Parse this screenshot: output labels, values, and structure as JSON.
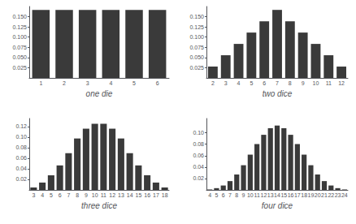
{
  "chart_data": [
    {
      "type": "bar",
      "xlabel": "one die",
      "categories": [
        "1",
        "2",
        "3",
        "4",
        "5",
        "6"
      ],
      "values": [
        0.16667,
        0.16667,
        0.16667,
        0.16667,
        0.16667,
        0.16667
      ],
      "color": "#3a3a3a",
      "ylim": [
        0,
        0.175
      ],
      "yticks": [
        0.025,
        {
          "value": 0.05,
          "label": "0.050"
        },
        0.075,
        {
          "value": 0.1,
          "label": "0.100"
        },
        0.125,
        {
          "value": 0.15,
          "label": "0.150"
        }
      ],
      "grid": false
    },
    {
      "type": "bar",
      "xlabel": "two dice",
      "categories": [
        "2",
        "3",
        "4",
        "5",
        "6",
        "7",
        "8",
        "9",
        "10",
        "11",
        "12"
      ],
      "values": [
        0.02778,
        0.05556,
        0.08333,
        0.11111,
        0.13889,
        0.16667,
        0.13889,
        0.11111,
        0.08333,
        0.05556,
        0.02778
      ],
      "color": "#3a3a3a",
      "ylim": [
        0,
        0.175
      ],
      "yticks": [
        0.025,
        {
          "value": 0.05,
          "label": "0.050"
        },
        0.075,
        {
          "value": 0.1,
          "label": "0.100"
        },
        0.125,
        {
          "value": 0.15,
          "label": "0.150"
        }
      ],
      "grid": false
    },
    {
      "type": "bar",
      "xlabel": "three dice",
      "categories": [
        "3",
        "4",
        "5",
        "6",
        "7",
        "8",
        "9",
        "10",
        "11",
        "12",
        "13",
        "14",
        "15",
        "16",
        "17",
        "18"
      ],
      "values": [
        0.00463,
        0.01389,
        0.02778,
        0.0463,
        0.06944,
        0.09722,
        0.11574,
        0.125,
        0.125,
        0.11574,
        0.09722,
        0.06944,
        0.0463,
        0.02778,
        0.01389,
        0.00463
      ],
      "color": "#3a3a3a",
      "ylim": [
        0,
        0.135
      ],
      "yticks": [
        0.02,
        0.04,
        0.06,
        0.08,
        {
          "value": 0.1,
          "label": "0.10"
        },
        0.12
      ],
      "grid": false
    },
    {
      "type": "bar",
      "xlabel": "four dice",
      "categories": [
        "4",
        "5",
        "6",
        "7",
        "8",
        "9",
        "10",
        "11",
        "12",
        "13",
        "14",
        "15",
        "16",
        "17",
        "18",
        "19",
        "20",
        "21",
        "22",
        "23",
        "24"
      ],
      "values": [
        0.00077,
        0.00309,
        0.00772,
        0.01543,
        0.02701,
        0.04321,
        0.06173,
        0.08025,
        0.09645,
        0.10802,
        0.11265,
        0.10802,
        0.09645,
        0.08025,
        0.06173,
        0.04321,
        0.02701,
        0.01543,
        0.00772,
        0.00309,
        0.00077
      ],
      "color": "#3a3a3a",
      "ylim": [
        0,
        0.125
      ],
      "yticks": [
        0.02,
        0.04,
        0.06,
        0.08,
        {
          "value": 0.1,
          "label": "0.10"
        }
      ],
      "grid": false
    }
  ]
}
